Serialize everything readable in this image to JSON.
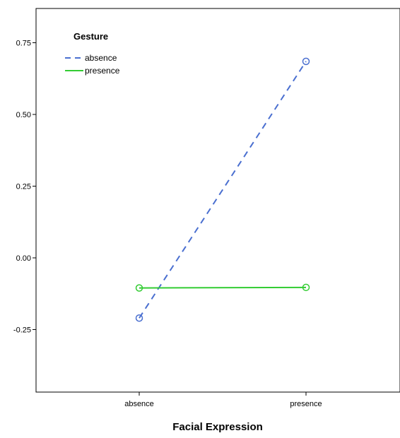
{
  "chart_data": {
    "type": "line",
    "title": "",
    "xlabel": "Facial Expression",
    "ylabel": "",
    "categories": [
      "absence",
      "presence"
    ],
    "ylim": [
      -0.45,
      0.82
    ],
    "yticks": [
      "0.75",
      "0.50",
      "0.25",
      "0.00",
      "-0.25"
    ],
    "ytick_values": [
      0.75,
      0.5,
      0.25,
      0.0,
      -0.25
    ],
    "grid": false,
    "legend": {
      "title": "Gesture",
      "placement": "top-left"
    },
    "series": [
      {
        "name": "absence",
        "values": [
          -0.21,
          0.685
        ],
        "color": "#4a6fd0",
        "line_style": "dashed",
        "marker": "open-circle"
      },
      {
        "name": "presence",
        "values": [
          -0.105,
          -0.103
        ],
        "color": "#33cc33",
        "line_style": "solid",
        "marker": "open-circle"
      }
    ]
  }
}
